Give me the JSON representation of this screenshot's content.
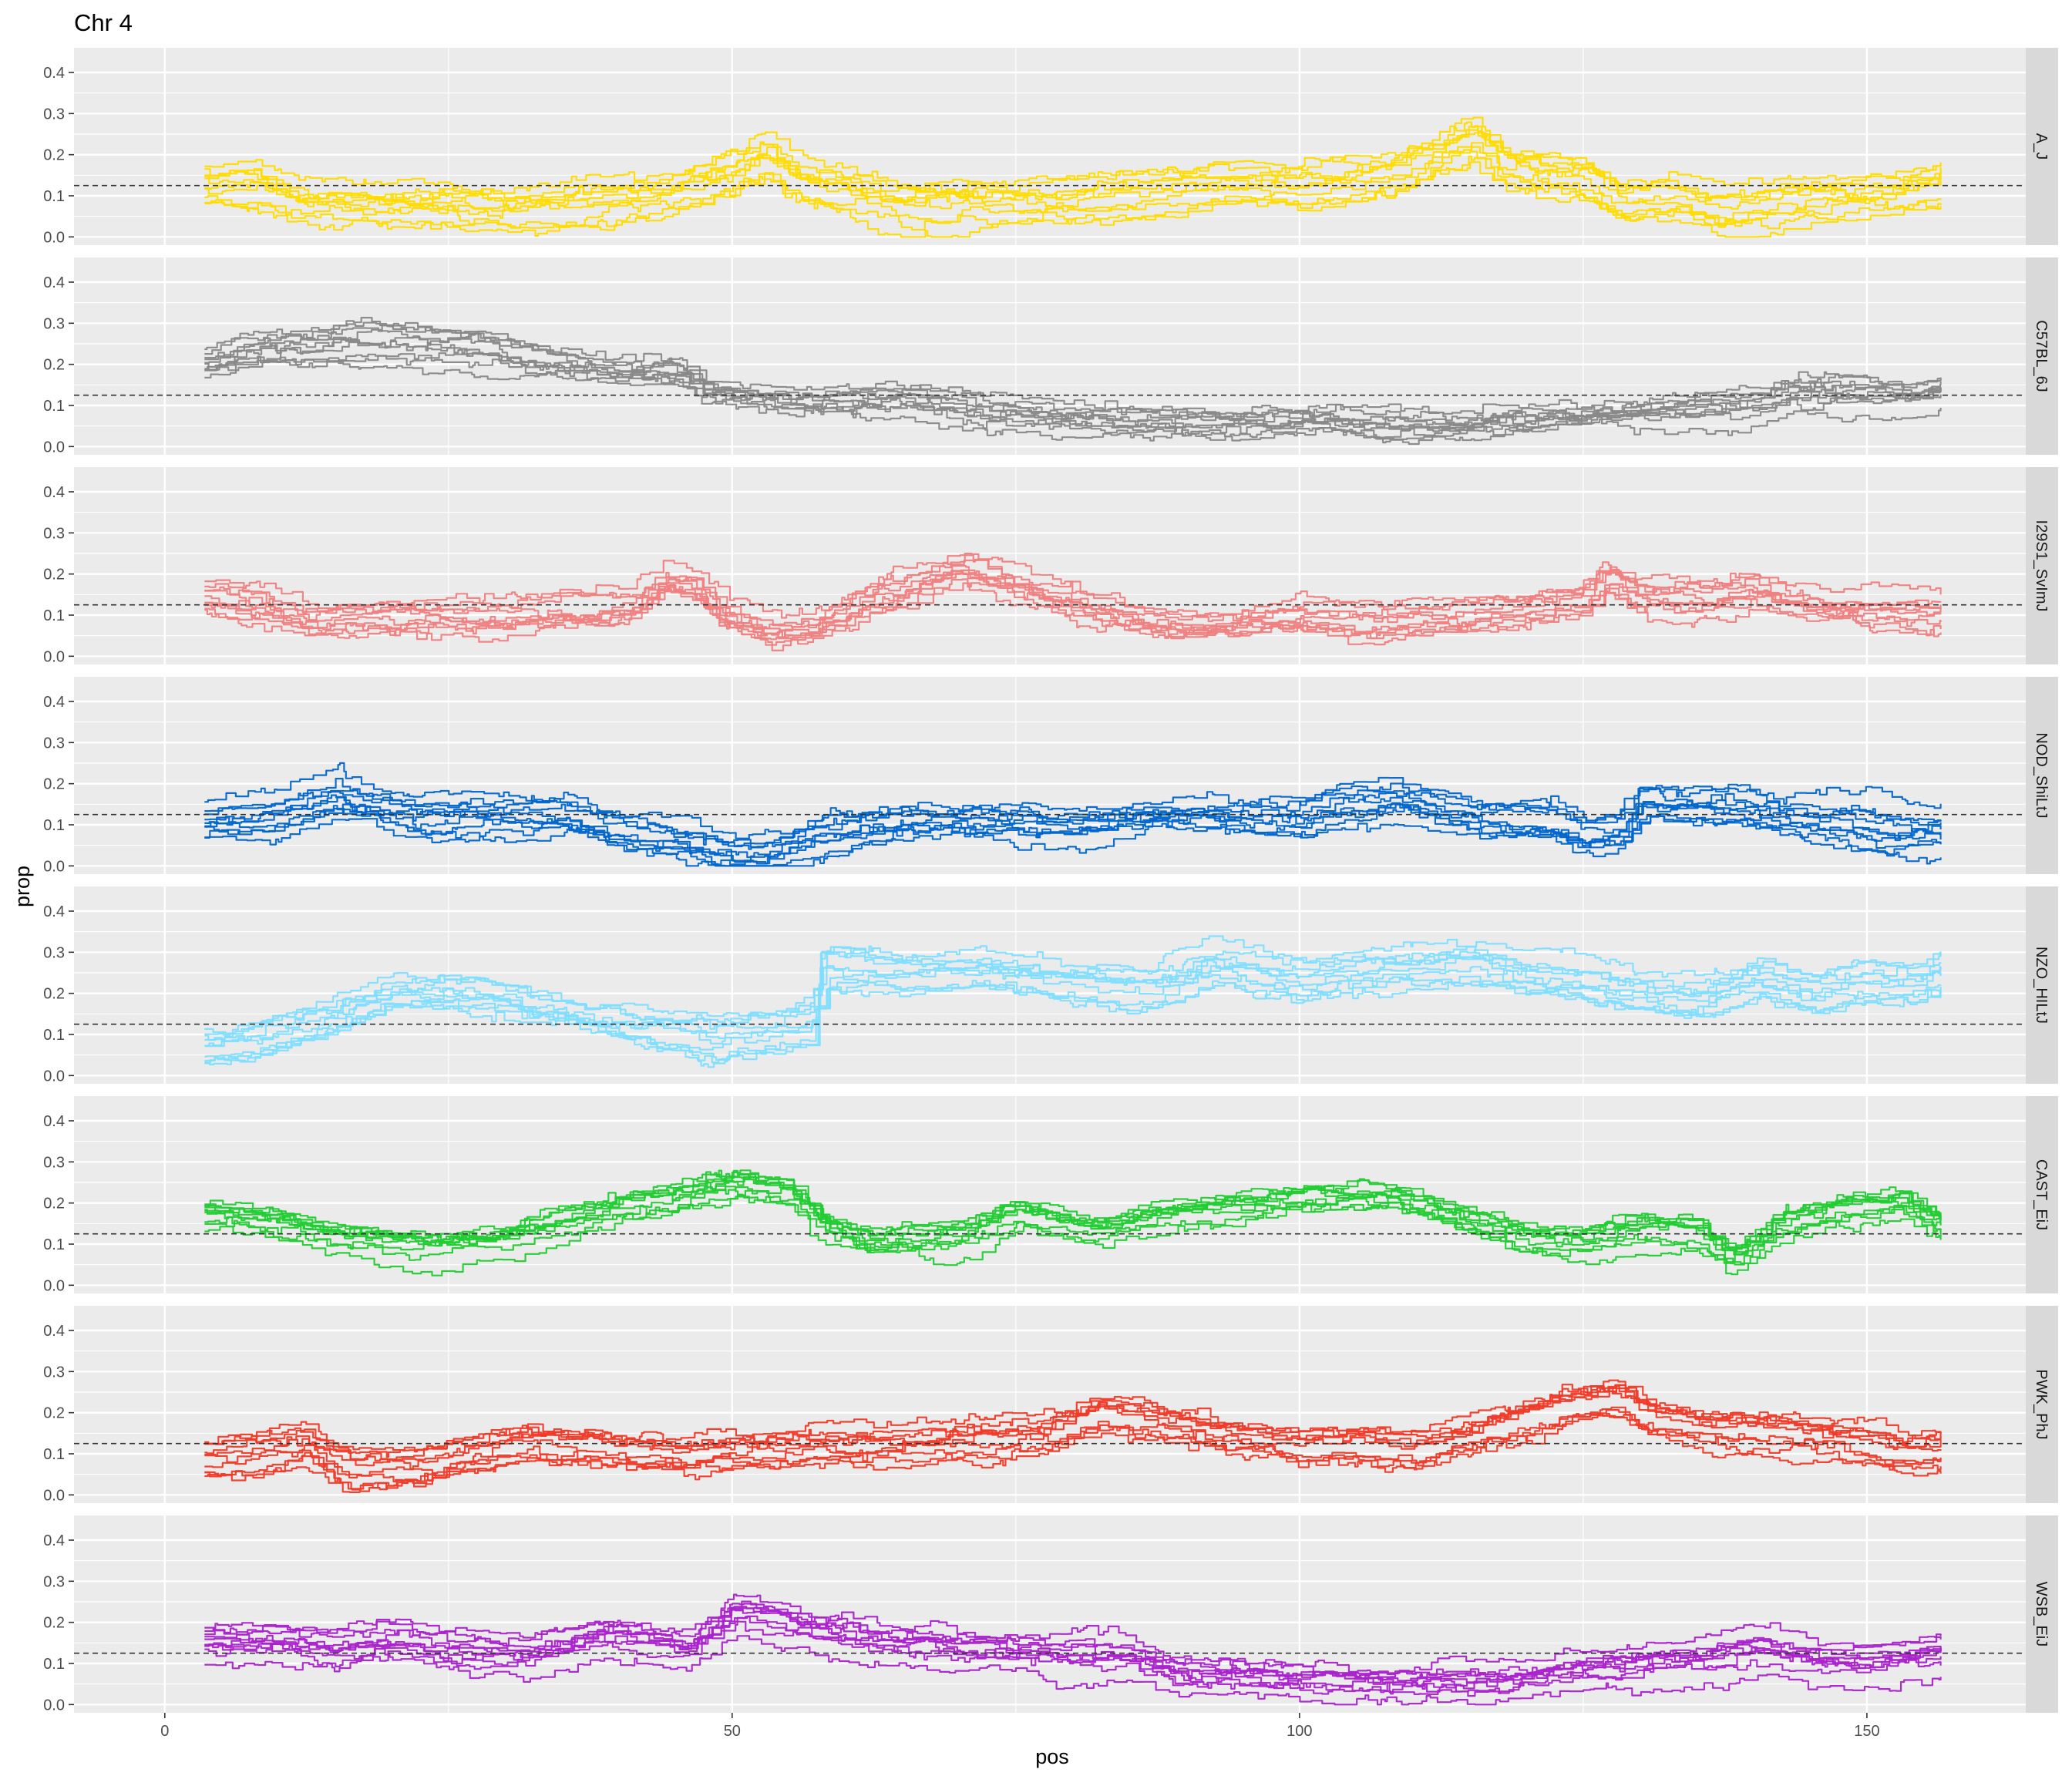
{
  "chart_data": {
    "type": "line",
    "title": "Chr 4",
    "xlabel": "pos",
    "ylabel": "prop",
    "xlim": [
      -8,
      164
    ],
    "ylim": [
      -0.02,
      0.46
    ],
    "x_ticks": [
      0,
      50,
      100,
      150
    ],
    "x_minor_ticks": [
      25,
      75,
      125
    ],
    "y_ticks": [
      0.0,
      0.1,
      0.2,
      0.3,
      0.4
    ],
    "y_tick_labels": [
      "0.0",
      "0.1",
      "0.2",
      "0.3",
      "0.4"
    ],
    "reference_line_y": 0.125,
    "grid": true,
    "legend": "none",
    "x_data_range": [
      3.5,
      156.5
    ],
    "lines_per_panel": 10,
    "facets": [
      {
        "strip": "A_J",
        "color": "#FFDC00",
        "knots": [
          [
            3.5,
            0.13
          ],
          [
            8,
            0.13
          ],
          [
            12,
            0.09
          ],
          [
            20,
            0.08
          ],
          [
            30,
            0.07
          ],
          [
            38,
            0.08
          ],
          [
            45,
            0.11
          ],
          [
            50,
            0.16
          ],
          [
            53,
            0.2
          ],
          [
            55,
            0.15
          ],
          [
            60,
            0.12
          ],
          [
            65,
            0.08
          ],
          [
            80,
            0.09
          ],
          [
            87,
            0.11
          ],
          [
            95,
            0.13
          ],
          [
            100,
            0.12
          ],
          [
            108,
            0.15
          ],
          [
            113,
            0.21
          ],
          [
            115,
            0.24
          ],
          [
            118,
            0.17
          ],
          [
            125,
            0.14
          ],
          [
            128,
            0.08
          ],
          [
            133,
            0.09
          ],
          [
            137,
            0.06
          ],
          [
            145,
            0.09
          ],
          [
            152,
            0.1
          ],
          [
            156.5,
            0.13
          ]
        ]
      },
      {
        "strip": "C57BL_6J",
        "color": "#888888",
        "knots": [
          [
            3.5,
            0.2
          ],
          [
            10,
            0.24
          ],
          [
            20,
            0.25
          ],
          [
            28,
            0.23
          ],
          [
            34,
            0.2
          ],
          [
            40,
            0.18
          ],
          [
            45,
            0.18
          ],
          [
            48,
            0.13
          ],
          [
            55,
            0.11
          ],
          [
            60,
            0.11
          ],
          [
            65,
            0.12
          ],
          [
            72,
            0.08
          ],
          [
            80,
            0.07
          ],
          [
            88,
            0.06
          ],
          [
            95,
            0.05
          ],
          [
            100,
            0.06
          ],
          [
            105,
            0.06
          ],
          [
            115,
            0.05
          ],
          [
            120,
            0.06
          ],
          [
            128,
            0.08
          ],
          [
            134,
            0.09
          ],
          [
            140,
            0.1
          ],
          [
            143,
            0.13
          ],
          [
            150,
            0.13
          ],
          [
            154,
            0.12
          ],
          [
            156.5,
            0.14
          ]
        ]
      },
      {
        "strip": "I29S1_SvImJ",
        "color": "#F08080",
        "knots": [
          [
            3.5,
            0.14
          ],
          [
            8,
            0.12
          ],
          [
            13,
            0.08
          ],
          [
            20,
            0.09
          ],
          [
            30,
            0.1
          ],
          [
            36,
            0.11
          ],
          [
            41,
            0.12
          ],
          [
            44,
            0.18
          ],
          [
            47,
            0.16
          ],
          [
            49,
            0.1
          ],
          [
            53,
            0.05
          ],
          [
            57,
            0.06
          ],
          [
            62,
            0.14
          ],
          [
            70,
            0.21
          ],
          [
            75,
            0.17
          ],
          [
            82,
            0.11
          ],
          [
            88,
            0.07
          ],
          [
            92,
            0.07
          ],
          [
            100,
            0.09
          ],
          [
            105,
            0.08
          ],
          [
            115,
            0.1
          ],
          [
            120,
            0.12
          ],
          [
            125,
            0.15
          ],
          [
            127,
            0.2
          ],
          [
            130,
            0.15
          ],
          [
            135,
            0.14
          ],
          [
            140,
            0.16
          ],
          [
            145,
            0.12
          ],
          [
            150,
            0.11
          ],
          [
            156.5,
            0.1
          ]
        ]
      },
      {
        "strip": "NOD_ShiLtJ",
        "color": "#0066CC",
        "knots": [
          [
            3.5,
            0.11
          ],
          [
            10,
            0.12
          ],
          [
            15,
            0.17
          ],
          [
            22,
            0.12
          ],
          [
            30,
            0.13
          ],
          [
            35,
            0.13
          ],
          [
            40,
            0.09
          ],
          [
            45,
            0.07
          ],
          [
            50,
            0.03
          ],
          [
            53,
            0.03
          ],
          [
            57,
            0.07
          ],
          [
            65,
            0.11
          ],
          [
            75,
            0.1
          ],
          [
            80,
            0.1
          ],
          [
            88,
            0.13
          ],
          [
            95,
            0.12
          ],
          [
            100,
            0.12
          ],
          [
            103,
            0.14
          ],
          [
            108,
            0.16
          ],
          [
            115,
            0.12
          ],
          [
            122,
            0.11
          ],
          [
            125,
            0.08
          ],
          [
            128,
            0.09
          ],
          [
            130,
            0.16
          ],
          [
            135,
            0.15
          ],
          [
            140,
            0.14
          ],
          [
            145,
            0.12
          ],
          [
            150,
            0.1
          ],
          [
            153,
            0.08
          ],
          [
            156.5,
            0.09
          ]
        ]
      },
      {
        "strip": "NZO_HILtJ",
        "color": "#80DEFF",
        "knots": [
          [
            3.5,
            0.07
          ],
          [
            8,
            0.09
          ],
          [
            15,
            0.15
          ],
          [
            20,
            0.2
          ],
          [
            28,
            0.2
          ],
          [
            35,
            0.16
          ],
          [
            42,
            0.13
          ],
          [
            48,
            0.09
          ],
          [
            53,
            0.11
          ],
          [
            57,
            0.13
          ],
          [
            58,
            0.26
          ],
          [
            65,
            0.25
          ],
          [
            72,
            0.26
          ],
          [
            80,
            0.23
          ],
          [
            87,
            0.21
          ],
          [
            92,
            0.27
          ],
          [
            100,
            0.24
          ],
          [
            108,
            0.26
          ],
          [
            115,
            0.27
          ],
          [
            120,
            0.24
          ],
          [
            125,
            0.23
          ],
          [
            128,
            0.21
          ],
          [
            135,
            0.19
          ],
          [
            140,
            0.24
          ],
          [
            145,
            0.2
          ],
          [
            150,
            0.22
          ],
          [
            154,
            0.22
          ],
          [
            156.5,
            0.25
          ]
        ]
      },
      {
        "strip": "CAST_EiJ",
        "color": "#22CC33",
        "knots": [
          [
            3.5,
            0.15
          ],
          [
            10,
            0.13
          ],
          [
            15,
            0.09
          ],
          [
            22,
            0.07
          ],
          [
            30,
            0.09
          ],
          [
            35,
            0.13
          ],
          [
            40,
            0.17
          ],
          [
            45,
            0.19
          ],
          [
            50,
            0.22
          ],
          [
            55,
            0.2
          ],
          [
            58,
            0.12
          ],
          [
            62,
            0.08
          ],
          [
            70,
            0.1
          ],
          [
            75,
            0.15
          ],
          [
            82,
            0.11
          ],
          [
            88,
            0.15
          ],
          [
            95,
            0.16
          ],
          [
            100,
            0.19
          ],
          [
            108,
            0.19
          ],
          [
            115,
            0.13
          ],
          [
            120,
            0.09
          ],
          [
            125,
            0.08
          ],
          [
            130,
            0.11
          ],
          [
            135,
            0.1
          ],
          [
            138,
            0.04
          ],
          [
            142,
            0.12
          ],
          [
            148,
            0.16
          ],
          [
            153,
            0.18
          ],
          [
            156.5,
            0.12
          ]
        ]
      },
      {
        "strip": "PWK_PhJ",
        "color": "#F03A28",
        "knots": [
          [
            3.5,
            0.09
          ],
          [
            8,
            0.1
          ],
          [
            12,
            0.13
          ],
          [
            16,
            0.06
          ],
          [
            22,
            0.07
          ],
          [
            28,
            0.11
          ],
          [
            32,
            0.13
          ],
          [
            38,
            0.12
          ],
          [
            45,
            0.09
          ],
          [
            52,
            0.1
          ],
          [
            57,
            0.12
          ],
          [
            62,
            0.11
          ],
          [
            70,
            0.13
          ],
          [
            78,
            0.15
          ],
          [
            82,
            0.2
          ],
          [
            87,
            0.18
          ],
          [
            92,
            0.15
          ],
          [
            100,
            0.12
          ],
          [
            105,
            0.13
          ],
          [
            110,
            0.11
          ],
          [
            118,
            0.17
          ],
          [
            123,
            0.22
          ],
          [
            128,
            0.24
          ],
          [
            130,
            0.2
          ],
          [
            135,
            0.17
          ],
          [
            140,
            0.16
          ],
          [
            145,
            0.15
          ],
          [
            150,
            0.12
          ],
          [
            153,
            0.1
          ],
          [
            156.5,
            0.11
          ]
        ]
      },
      {
        "strip": "WSB_EiJ",
        "color": "#AA22CC",
        "knots": [
          [
            3.5,
            0.14
          ],
          [
            10,
            0.14
          ],
          [
            15,
            0.13
          ],
          [
            20,
            0.15
          ],
          [
            25,
            0.12
          ],
          [
            32,
            0.11
          ],
          [
            38,
            0.16
          ],
          [
            42,
            0.15
          ],
          [
            46,
            0.13
          ],
          [
            50,
            0.21
          ],
          [
            53,
            0.2
          ],
          [
            57,
            0.17
          ],
          [
            62,
            0.14
          ],
          [
            65,
            0.14
          ],
          [
            70,
            0.12
          ],
          [
            80,
            0.11
          ],
          [
            85,
            0.1
          ],
          [
            90,
            0.06
          ],
          [
            95,
            0.06
          ],
          [
            100,
            0.05
          ],
          [
            105,
            0.05
          ],
          [
            115,
            0.04
          ],
          [
            120,
            0.05
          ],
          [
            125,
            0.07
          ],
          [
            130,
            0.09
          ],
          [
            135,
            0.1
          ],
          [
            140,
            0.13
          ],
          [
            145,
            0.1
          ],
          [
            150,
            0.09
          ],
          [
            154,
            0.1
          ],
          [
            156.5,
            0.11
          ]
        ]
      }
    ]
  }
}
